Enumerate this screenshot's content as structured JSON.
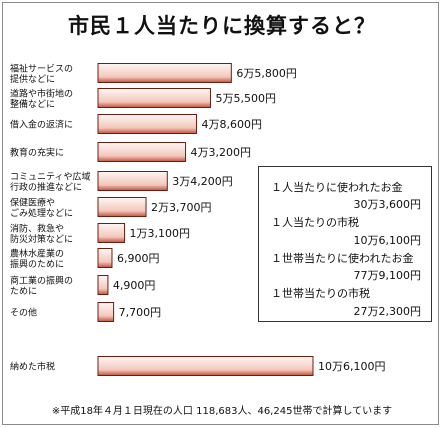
{
  "title": "市民１人当たりに換算すると？",
  "chart_data": {
    "type": "bar",
    "orientation": "horizontal",
    "categories": [
      [
        "福祉サービスの",
        "提供などに"
      ],
      [
        "道路や市街地の",
        "整備などに"
      ],
      [
        "借入金の返済に"
      ],
      [
        "教育の充実に"
      ],
      [
        "コミュニティや広域",
        "行政の推進などに"
      ],
      [
        "保健医療や",
        "ごみ処理などに"
      ],
      [
        "消防、救急や",
        "防災対策などに"
      ],
      [
        "農林水産業の",
        "振興のために"
      ],
      [
        "商工業の振興の",
        "ために"
      ],
      [
        "その他"
      ],
      [
        "納めた市税"
      ]
    ],
    "values": [
      65800,
      55500,
      48600,
      43200,
      34200,
      23700,
      13100,
      6900,
      4900,
      7700,
      106100
    ],
    "value_labels": [
      "6万5,800円",
      "5万5,500円",
      "4万8,600円",
      "4万3,200円",
      "3万4,200円",
      "2万3,700円",
      "1万3,100円",
      "6,900円",
      "4,900円",
      "7,700円",
      "10万6,100円"
    ],
    "unit": "円",
    "grid": false,
    "colors": {
      "bar_fill_light": "#fdf6f3",
      "bar_fill_dark": "#c2543e",
      "bar_border": "#6b1f14"
    }
  },
  "info_box": {
    "items": [
      {
        "label": "１人当たりに使われたお金",
        "value": "30万3,600円"
      },
      {
        "label": "１人当たりの市税",
        "value": "10万6,100円"
      },
      {
        "label": "１世帯当たりに使われたお金",
        "value": "77万9,100円"
      },
      {
        "label": "１世帯当たりの市税",
        "value": "27万2,300円"
      }
    ]
  },
  "footnote": "※平成18年４月１日現在の人口 118,683人、46,245世帯で計算しています"
}
